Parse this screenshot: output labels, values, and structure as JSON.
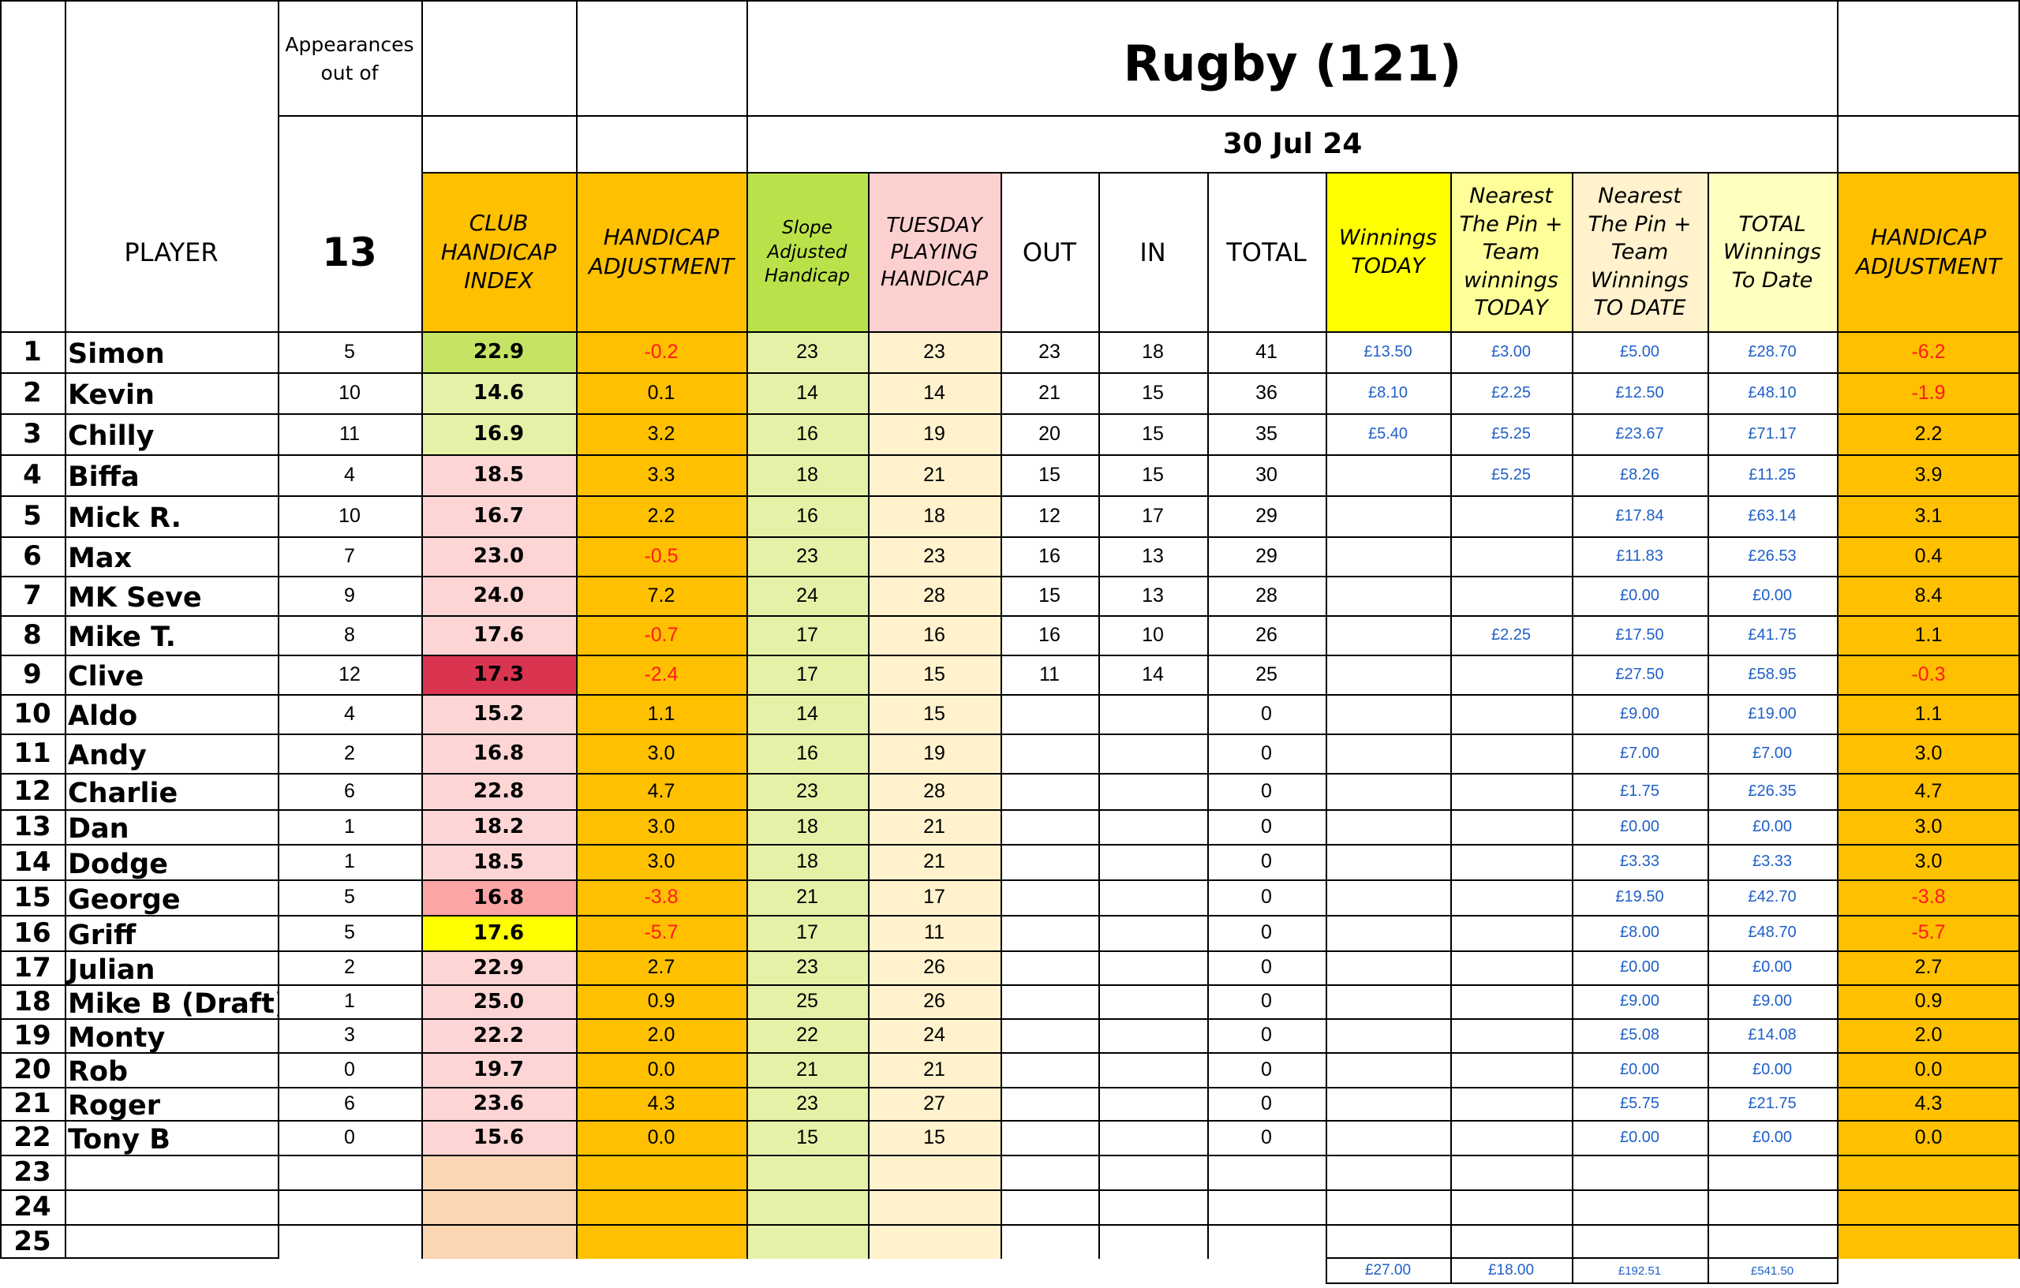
{
  "title": "Rugby (121)",
  "date": "30 Jul 24",
  "appearances": {
    "label": "Appearances out of",
    "count": "13"
  },
  "headers": {
    "player": "PLAYER",
    "club_handicap_index": "CLUB HANDICAP INDEX",
    "handicap_adjustment": "HANDICAP ADJUSTMENT",
    "slope_adjusted": "Slope Adjusted Handicap",
    "tuesday_playing": "TUESDAY PLAYING HANDICAP",
    "out": "OUT",
    "in": "IN",
    "total": "TOTAL",
    "winnings_today": "Winnings TODAY",
    "ntp_today": "Nearest The Pin + Team winnings TODAY",
    "ntp_to_date": "Nearest The Pin + Team Winnings TO DATE",
    "total_winnings": "TOTAL Winnings To Date",
    "handicap_adjustment_2": "HANDICAP ADJUSTMENT"
  },
  "colors": {
    "club_default": "#fdd5d5",
    "hadj": "#ffc000",
    "slope": "#e4f2a8",
    "tuesday": "#fff2cc",
    "empty_club": "#fcd5b4",
    "hdr_slope": "#b9e24a",
    "hdr_tuesday": "#fdd0d0",
    "hdr_yellow": "#ffff00",
    "hdr_lightyellow": "#ffff99",
    "hdr_cream": "#fff2cc",
    "hdr_pale": "#ffffbf"
  },
  "rows": [
    {
      "n": "1",
      "name": "Simon",
      "app": "5",
      "idx": "22.9",
      "idxc": "#c6e464",
      "adj": "-0.2",
      "slope": "23",
      "tue": "23",
      "out": "23",
      "in": "18",
      "tot": "41",
      "wt": "£13.50",
      "ntp": "£3.00",
      "ntpd": "£5.00",
      "twd": "£28.70",
      "adj2": "-6.2"
    },
    {
      "n": "2",
      "name": "Kevin",
      "app": "10",
      "idx": "14.6",
      "idxc": "#e4f2a8",
      "adj": "0.1",
      "slope": "14",
      "tue": "14",
      "out": "21",
      "in": "15",
      "tot": "36",
      "wt": "£8.10",
      "ntp": "£2.25",
      "ntpd": "£12.50",
      "twd": "£48.10",
      "adj2": "-1.9"
    },
    {
      "n": "3",
      "name": "Chilly",
      "app": "11",
      "idx": "16.9",
      "idxc": "#e4f2a8",
      "adj": "3.2",
      "slope": "16",
      "tue": "19",
      "out": "20",
      "in": "15",
      "tot": "35",
      "wt": "£5.40",
      "ntp": "£5.25",
      "ntpd": "£23.67",
      "twd": "£71.17",
      "adj2": "2.2"
    },
    {
      "n": "4",
      "name": "Biffa",
      "app": "4",
      "idx": "18.5",
      "idxc": "#fdd5d5",
      "adj": "3.3",
      "slope": "18",
      "tue": "21",
      "out": "15",
      "in": "15",
      "tot": "30",
      "wt": "",
      "ntp": "£5.25",
      "ntpd": "£8.26",
      "twd": "£11.25",
      "adj2": "3.9"
    },
    {
      "n": "5",
      "name": "Mick R.",
      "app": "10",
      "idx": "16.7",
      "idxc": "#fdd5d5",
      "adj": "2.2",
      "slope": "16",
      "tue": "18",
      "out": "12",
      "in": "17",
      "tot": "29",
      "wt": "",
      "ntp": "",
      "ntpd": "£17.84",
      "twd": "£63.14",
      "adj2": "3.1"
    },
    {
      "n": "6",
      "name": "Max",
      "app": "7",
      "idx": "23.0",
      "idxc": "#fdd5d5",
      "adj": "-0.5",
      "slope": "23",
      "tue": "23",
      "out": "16",
      "in": "13",
      "tot": "29",
      "wt": "",
      "ntp": "",
      "ntpd": "£11.83",
      "twd": "£26.53",
      "adj2": "0.4"
    },
    {
      "n": "7",
      "name": "MK Seve",
      "app": "9",
      "idx": "24.0",
      "idxc": "#fdd5d5",
      "adj": "7.2",
      "slope": "24",
      "tue": "28",
      "out": "15",
      "in": "13",
      "tot": "28",
      "wt": "",
      "ntp": "",
      "ntpd": "£0.00",
      "twd": "£0.00",
      "adj2": "8.4"
    },
    {
      "n": "8",
      "name": "Mike T.",
      "app": "8",
      "idx": "17.6",
      "idxc": "#fdd5d5",
      "adj": "-0.7",
      "slope": "17",
      "tue": "16",
      "out": "16",
      "in": "10",
      "tot": "26",
      "wt": "",
      "ntp": "£2.25",
      "ntpd": "£17.50",
      "twd": "£41.75",
      "adj2": "1.1"
    },
    {
      "n": "9",
      "name": "Clive",
      "app": "12",
      "idx": "17.3",
      "idxc": "#d93450",
      "adj": "-2.4",
      "slope": "17",
      "tue": "15",
      "out": "11",
      "in": "14",
      "tot": "25",
      "wt": "",
      "ntp": "",
      "ntpd": "£27.50",
      "twd": "£58.95",
      "adj2": "-0.3"
    },
    {
      "n": "10",
      "name": "Aldo",
      "app": "4",
      "idx": "15.2",
      "idxc": "#fdd5d5",
      "adj": "1.1",
      "slope": "14",
      "tue": "15",
      "out": "",
      "in": "",
      "tot": "0",
      "wt": "",
      "ntp": "",
      "ntpd": "£9.00",
      "twd": "£19.00",
      "adj2": "1.1"
    },
    {
      "n": "11",
      "name": "Andy",
      "app": "2",
      "idx": "16.8",
      "idxc": "#fdd5d5",
      "adj": "3.0",
      "slope": "16",
      "tue": "19",
      "out": "",
      "in": "",
      "tot": "0",
      "wt": "",
      "ntp": "",
      "ntpd": "£7.00",
      "twd": "£7.00",
      "adj2": "3.0"
    },
    {
      "n": "12",
      "name": "Charlie",
      "app": "6",
      "idx": "22.8",
      "idxc": "#fdd5d5",
      "adj": "4.7",
      "slope": "23",
      "tue": "28",
      "out": "",
      "in": "",
      "tot": "0",
      "wt": "",
      "ntp": "",
      "ntpd": "£1.75",
      "twd": "£26.35",
      "adj2": "4.7"
    },
    {
      "n": "13",
      "name": "Dan",
      "app": "1",
      "idx": "18.2",
      "idxc": "#fdd5d5",
      "adj": "3.0",
      "slope": "18",
      "tue": "21",
      "out": "",
      "in": "",
      "tot": "0",
      "wt": "",
      "ntp": "",
      "ntpd": "£0.00",
      "twd": "£0.00",
      "adj2": "3.0"
    },
    {
      "n": "14",
      "name": "Dodge",
      "app": "1",
      "idx": "18.5",
      "idxc": "#fdd5d5",
      "adj": "3.0",
      "slope": "18",
      "tue": "21",
      "out": "",
      "in": "",
      "tot": "0",
      "wt": "",
      "ntp": "",
      "ntpd": "£3.33",
      "twd": "£3.33",
      "adj2": "3.0"
    },
    {
      "n": "15",
      "name": "George",
      "app": "5",
      "idx": "16.8",
      "idxc": "#fca5a5",
      "adj": "-3.8",
      "slope": "21",
      "tue": "17",
      "out": "",
      "in": "",
      "tot": "0",
      "wt": "",
      "ntp": "",
      "ntpd": "£19.50",
      "twd": "£42.70",
      "adj2": "-3.8"
    },
    {
      "n": "16",
      "name": "Griff",
      "app": "5",
      "idx": "17.6",
      "idxc": "#ffff00",
      "adj": "-5.7",
      "slope": "17",
      "tue": "11",
      "out": "",
      "in": "",
      "tot": "0",
      "wt": "",
      "ntp": "",
      "ntpd": "£8.00",
      "twd": "£48.70",
      "adj2": "-5.7"
    },
    {
      "n": "17",
      "name": "Julian",
      "app": "2",
      "idx": "22.9",
      "idxc": "#fdd5d5",
      "adj": "2.7",
      "slope": "23",
      "tue": "26",
      "out": "",
      "in": "",
      "tot": "0",
      "wt": "",
      "ntp": "",
      "ntpd": "£0.00",
      "twd": "£0.00",
      "adj2": "2.7"
    },
    {
      "n": "18",
      "name": "Mike B (Draft)",
      "app": "1",
      "idx": "25.0",
      "idxc": "#fdd5d5",
      "adj": "0.9",
      "slope": "25",
      "tue": "26",
      "out": "",
      "in": "",
      "tot": "0",
      "wt": "",
      "ntp": "",
      "ntpd": "£9.00",
      "twd": "£9.00",
      "adj2": "0.9"
    },
    {
      "n": "19",
      "name": "Monty",
      "app": "3",
      "idx": "22.2",
      "idxc": "#fdd5d5",
      "adj": "2.0",
      "slope": "22",
      "tue": "24",
      "out": "",
      "in": "",
      "tot": "0",
      "wt": "",
      "ntp": "",
      "ntpd": "£5.08",
      "twd": "£14.08",
      "adj2": "2.0"
    },
    {
      "n": "20",
      "name": "Rob",
      "app": "0",
      "idx": "19.7",
      "idxc": "#fdd5d5",
      "adj": "0.0",
      "slope": "21",
      "tue": "21",
      "out": "",
      "in": "",
      "tot": "0",
      "wt": "",
      "ntp": "",
      "ntpd": "£0.00",
      "twd": "£0.00",
      "adj2": "0.0"
    },
    {
      "n": "21",
      "name": "Roger",
      "app": "6",
      "idx": "23.6",
      "idxc": "#fdd5d5",
      "adj": "4.3",
      "slope": "23",
      "tue": "27",
      "out": "",
      "in": "",
      "tot": "0",
      "wt": "",
      "ntp": "",
      "ntpd": "£5.75",
      "twd": "£21.75",
      "adj2": "4.3"
    },
    {
      "n": "22",
      "name": "Tony B",
      "app": "0",
      "idx": "15.6",
      "idxc": "#fdd5d5",
      "adj": "0.0",
      "slope": "15",
      "tue": "15",
      "out": "",
      "in": "",
      "tot": "0",
      "wt": "",
      "ntp": "",
      "ntpd": "£0.00",
      "twd": "£0.00",
      "adj2": "0.0"
    },
    {
      "n": "23",
      "name": "",
      "app": "",
      "idx": "",
      "idxc": "#fcd5b4",
      "adj": "",
      "slope": "",
      "tue": "",
      "out": "",
      "in": "",
      "tot": "",
      "wt": "",
      "ntp": "",
      "ntpd": "",
      "twd": "",
      "adj2": ""
    },
    {
      "n": "24",
      "name": "",
      "app": "",
      "idx": "",
      "idxc": "#fcd5b4",
      "adj": "",
      "slope": "",
      "tue": "",
      "out": "",
      "in": "",
      "tot": "",
      "wt": "",
      "ntp": "",
      "ntpd": "",
      "twd": "",
      "adj2": ""
    },
    {
      "n": "25",
      "name": "",
      "app": "",
      "idx": "",
      "idxc": "#fcd5b4",
      "adj": "",
      "slope": "",
      "tue": "",
      "out": "",
      "in": "",
      "tot": "",
      "wt": "",
      "ntp": "",
      "ntpd": "",
      "twd": "",
      "adj2": ""
    }
  ],
  "totals": {
    "winnings_today": "£27.00",
    "ntp_today": "£18.00",
    "ntp_to_date": "£192.51",
    "total_winnings": "£541.50"
  }
}
